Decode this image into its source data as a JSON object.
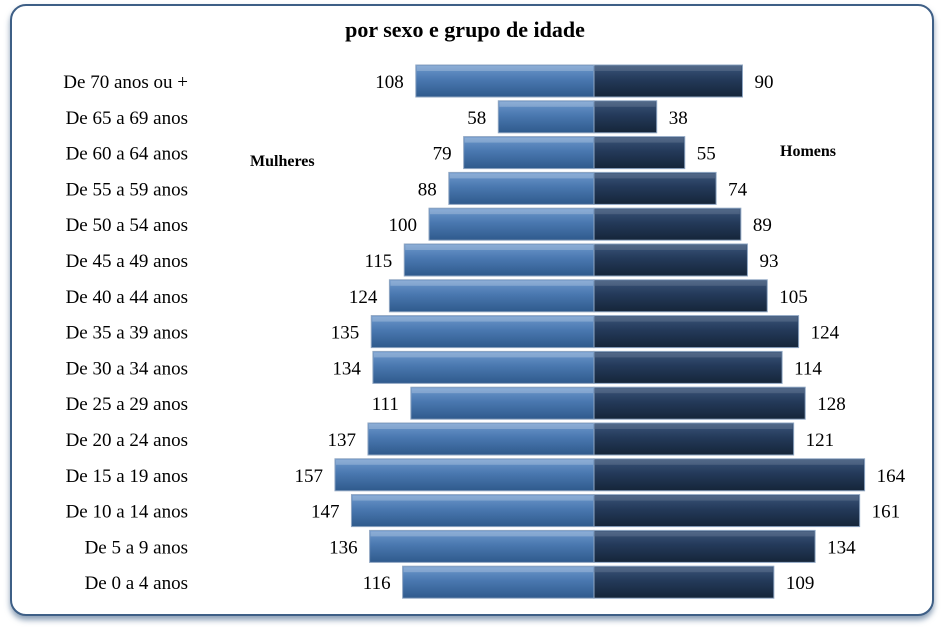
{
  "chart_data": {
    "type": "bar",
    "orientation": "horizontal",
    "layout": "population-pyramid",
    "title": "por sexo e grupo de idade",
    "categories": [
      "De 70 anos ou +",
      "De 65 a 69 anos",
      "De 60 a 64 anos",
      "De 55 a 59 anos",
      "De 50 a 54 anos",
      "De 45 a 49 anos",
      "De 40 a 44 anos",
      "De 35 a 39 anos",
      "De 30 a 34 anos",
      "De 25 a 29 anos",
      "De 20 a 24 anos",
      "De 15 a 19 anos",
      "De 10 a 14 anos",
      "De 5 a 9 anos",
      "De 0 a 4 anos"
    ],
    "series": [
      {
        "name": "Mulheres",
        "side": "left",
        "color": "#4a78b0",
        "values": [
          108,
          58,
          79,
          88,
          100,
          115,
          124,
          135,
          134,
          111,
          137,
          157,
          147,
          136,
          116
        ]
      },
      {
        "name": "Homens",
        "side": "right",
        "color": "#243a5a",
        "values": [
          90,
          38,
          55,
          74,
          89,
          93,
          105,
          124,
          114,
          128,
          121,
          164,
          161,
          134,
          109
        ]
      }
    ],
    "grid": false,
    "colors": {
      "frame": "#3e5f86",
      "frame_shadow": "#6f8fb5"
    }
  }
}
